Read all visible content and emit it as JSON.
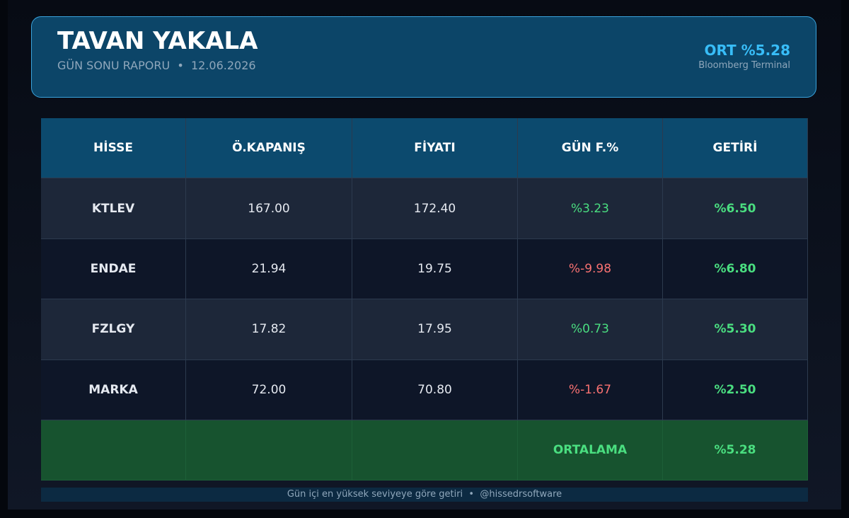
{
  "header": {
    "title": "TAVAN YAKALA",
    "subtitle": "GÜN SONU RAPORU  •  12.06.2026",
    "average": "ORT %5.28",
    "source": "Bloomberg Terminal"
  },
  "table": {
    "columns": [
      "HİSSE",
      "Ö.KAPANIŞ",
      "FİYATI",
      "GÜN F.%",
      "GETİRİ"
    ],
    "rows": [
      [
        "KTLEV",
        "167.00",
        "172.40",
        "%3.23",
        "%6.50"
      ],
      [
        "ENDAE",
        "21.94",
        "19.75",
        "%-9.98",
        "%6.80"
      ],
      [
        "FZLGY",
        "17.82",
        "17.95",
        "%0.73",
        "%5.30"
      ],
      [
        "MARKA",
        "72.00",
        "70.80",
        "%-1.67",
        "%2.50"
      ]
    ],
    "summary": {
      "label": "ORTALAMA",
      "value": "%5.28"
    }
  },
  "footer": {
    "note": "Gün içi en yüksek seviyeye göre getiri  •  @hissedrsoftware"
  }
}
